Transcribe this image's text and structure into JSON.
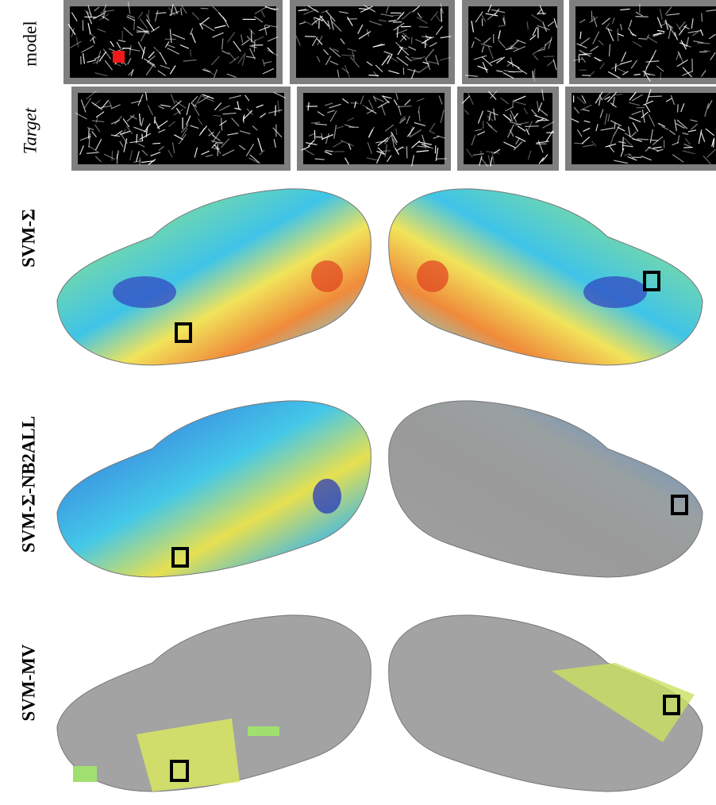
{
  "rows": [
    {
      "label": "model"
    },
    {
      "label": "Target"
    },
    {
      "label": "SVM-Σ"
    },
    {
      "label": "SVM-Σ-NB2ALL"
    },
    {
      "label": "SVM-MV"
    }
  ]
}
